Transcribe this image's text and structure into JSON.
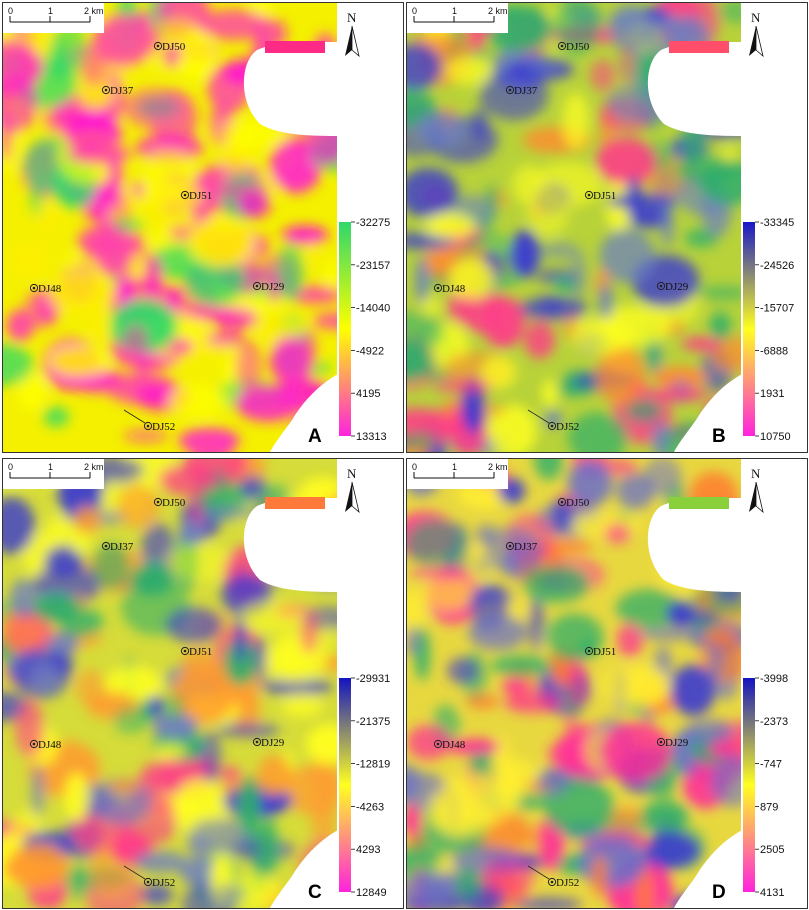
{
  "scale_bar": {
    "ticks": [
      "0",
      "1",
      "2 km"
    ]
  },
  "north_label": "N",
  "wells": [
    "DJ50",
    "DJ37",
    "DJ51",
    "DJ48",
    "DJ29",
    "DJ52"
  ],
  "panels": [
    {
      "letter": "A",
      "colorbar_ticks": [
        "-32275",
        "-23157",
        "-14040",
        "-4922",
        "4195",
        "13313"
      ],
      "colors": {
        "top": "#2ed86b",
        "mid": "#ffff00",
        "bottom": "#ff22dd",
        "base": "#f4f000",
        "patch": "#ff2a86"
      }
    },
    {
      "letter": "B",
      "colorbar_ticks": [
        "-33345",
        "-24526",
        "-15707",
        "-6888",
        "1931",
        "10750"
      ],
      "colors": {
        "top": "#1818c8",
        "mid": "#ffff20",
        "bottom": "#ff22dd",
        "base": "#b8d23a",
        "patch": "#ff4d6a"
      }
    },
    {
      "letter": "C",
      "colorbar_ticks": [
        "-29931",
        "-21375",
        "-12819",
        "-4263",
        "4293",
        "12849"
      ],
      "colors": {
        "top": "#1414c0",
        "mid": "#ffff20",
        "bottom": "#ff22dd",
        "base": "#d6dc3a",
        "patch": "#ff7a3a"
      }
    },
    {
      "letter": "D",
      "colorbar_ticks": [
        "-3998",
        "-2373",
        "-747",
        "879",
        "2505",
        "4131"
      ],
      "colors": {
        "top": "#1414c0",
        "mid": "#ffff20",
        "bottom": "#ff22dd",
        "base": "#e8d840",
        "patch": "#8ad03a"
      }
    }
  ]
}
